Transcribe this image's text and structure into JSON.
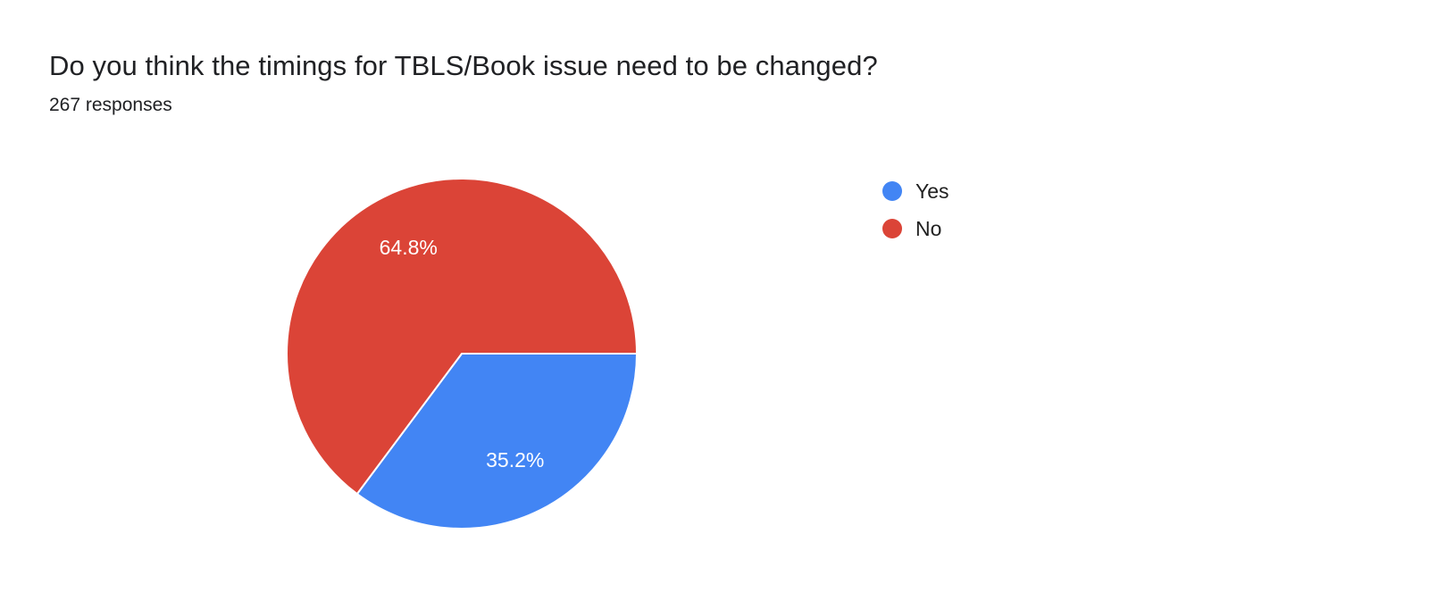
{
  "header": {
    "title": "Do you think the timings for TBLS/Book issue need to be changed?",
    "responses": "267 responses"
  },
  "chart_data": {
    "type": "pie",
    "title": "Do you think the timings for TBLS/Book issue need to be changed?",
    "responses_count": 267,
    "start_angle_deg": 90,
    "direction": "clockwise",
    "legend_position": "right",
    "slice_label_color": "#FFFFFF",
    "slice_border_color": "#FFFFFF",
    "slices": [
      {
        "label": "Yes",
        "value": 35.2,
        "percent_label": "35.2%",
        "color": "#4285F4"
      },
      {
        "label": "No",
        "value": 64.8,
        "percent_label": "64.8%",
        "color": "#DB4437"
      }
    ]
  }
}
